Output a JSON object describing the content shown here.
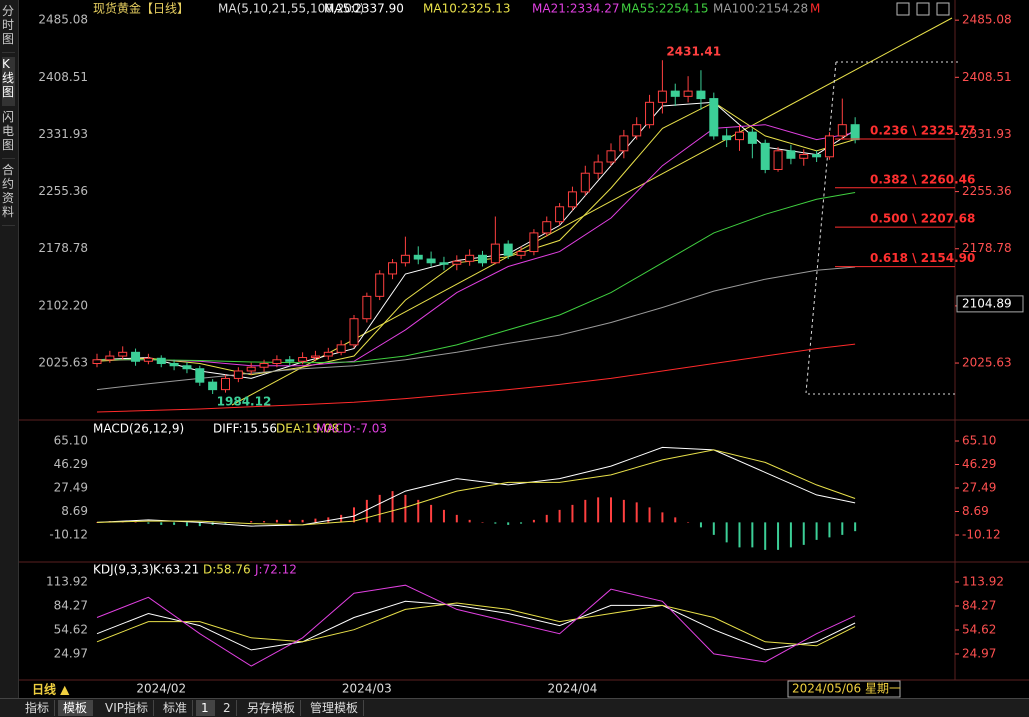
{
  "sidebar": [
    "分时图",
    "K线图",
    "闪电图",
    "合约资料"
  ],
  "timeframe": "日线 ▲",
  "tabs": [
    "指标",
    "模板",
    "VIP指标",
    "标准",
    "1",
    "2",
    "另存模板",
    "管理模板"
  ],
  "chart_data": [
    {
      "type": "candlestick",
      "title": "现货黄金【日线】",
      "subtitle": "MA(5,10,21,55,100,200)",
      "categories": [
        null,
        null,
        null,
        null,
        null,
        "2024/02",
        null,
        null,
        null,
        null,
        null,
        null,
        null,
        null,
        null,
        null,
        null,
        null,
        null,
        null,
        null,
        "2024/03",
        null,
        null,
        null,
        null,
        null,
        null,
        null,
        null,
        null,
        null,
        null,
        null,
        null,
        null,
        null,
        "2024/04",
        null,
        null,
        null,
        null,
        null,
        null,
        null,
        null,
        null,
        null,
        null,
        null,
        null,
        null,
        null,
        null,
        null,
        null,
        null,
        null,
        null,
        null
      ],
      "open": [
        2025,
        2030,
        2035,
        2040,
        2028,
        2032,
        2025,
        2022,
        2018,
        2000,
        1990,
        2005,
        2015,
        2020,
        2025,
        2030,
        2028,
        2033,
        2035,
        2040,
        2050,
        2085,
        2115,
        2145,
        2160,
        2170,
        2165,
        2160,
        2158,
        2162,
        2170,
        2160,
        2185,
        2170,
        2175,
        2200,
        2215,
        2235,
        2255,
        2280,
        2295,
        2310,
        2330,
        2345,
        2375,
        2390,
        2383,
        2390,
        2380,
        2330,
        2325,
        2335,
        2320,
        2285,
        2310,
        2300,
        2305,
        2302,
        2330,
        2345
      ],
      "high": [
        2038,
        2042,
        2048,
        2045,
        2038,
        2036,
        2030,
        2027,
        2022,
        2004,
        2010,
        2020,
        2026,
        2030,
        2036,
        2035,
        2040,
        2042,
        2046,
        2056,
        2090,
        2120,
        2150,
        2165,
        2195,
        2182,
        2175,
        2168,
        2170,
        2178,
        2176,
        2222,
        2190,
        2182,
        2205,
        2222,
        2240,
        2262,
        2290,
        2305,
        2320,
        2338,
        2355,
        2385,
        2431.41,
        2400,
        2410,
        2418,
        2388,
        2340,
        2345,
        2340,
        2325,
        2315,
        2318,
        2312,
        2310,
        2335,
        2380,
        2355
      ],
      "low": [
        2020,
        2026,
        2030,
        2022,
        2024,
        2020,
        2016,
        2012,
        1995,
        1984.12,
        1986,
        2000,
        2010,
        2014,
        2020,
        2022,
        2024,
        2028,
        2030,
        2036,
        2046,
        2080,
        2110,
        2138,
        2155,
        2158,
        2155,
        2150,
        2150,
        2156,
        2155,
        2158,
        2165,
        2165,
        2170,
        2195,
        2210,
        2230,
        2250,
        2272,
        2290,
        2300,
        2325,
        2340,
        2360,
        2370,
        2375,
        2365,
        2325,
        2315,
        2310,
        2300,
        2280,
        2282,
        2292,
        2290,
        2295,
        2298,
        2325,
        2320
      ],
      "close": [
        2030,
        2035,
        2040,
        2028,
        2032,
        2025,
        2022,
        2018,
        2000,
        1990,
        2005,
        2015,
        2020,
        2025,
        2030,
        2028,
        2033,
        2035,
        2040,
        2050,
        2085,
        2115,
        2145,
        2160,
        2170,
        2165,
        2160,
        2158,
        2162,
        2170,
        2160,
        2185,
        2170,
        2175,
        2200,
        2215,
        2235,
        2255,
        2280,
        2295,
        2310,
        2330,
        2345,
        2375,
        2390,
        2383,
        2390,
        2380,
        2330,
        2325,
        2335,
        2320,
        2285,
        2310,
        2300,
        2305,
        2302,
        2330,
        2345,
        2325
      ],
      "up_color": "#ff4040",
      "down_color": "#3ccf97",
      "ylim": [
        1956,
        2492
      ],
      "yticks": [
        2485.08,
        2408.51,
        2331.93,
        2255.36,
        2178.78,
        {
          "value": 2102.2,
          "label": "2102.20"
        },
        2025.63
      ],
      "x": [
        0,
        4,
        8,
        12,
        16,
        20,
        24,
        28,
        32,
        36,
        40,
        44,
        48,
        52,
        56,
        59
      ],
      "series": [
        {
          "name": "MA5:2337.90",
          "color": "#ffffff",
          "values": [
            2030,
            2033,
            2015,
            2005,
            2027,
            2045,
            2145,
            2163,
            2172,
            2210,
            2290,
            2370,
            2375,
            2315,
            2305,
            2337.9
          ]
        },
        {
          "name": "MA10:2325.13",
          "color": "#e8e04a",
          "values": [
            2028,
            2032,
            2025,
            2010,
            2020,
            2035,
            2110,
            2160,
            2168,
            2190,
            2260,
            2340,
            2375,
            2330,
            2310,
            2325.13
          ]
        },
        {
          "name": "MA21:2334.27",
          "color": "#e040e0",
          "values": [
            2030,
            2030,
            2028,
            2022,
            2022,
            2028,
            2070,
            2120,
            2155,
            2175,
            2220,
            2290,
            2340,
            2345,
            2325,
            2334.27
          ]
        },
        {
          "name": "MA55:2254.15",
          "color": "#40d040",
          "values": [
            2030,
            2030,
            2029,
            2027,
            2026,
            2027,
            2035,
            2050,
            2070,
            2090,
            2120,
            2160,
            2200,
            2225,
            2245,
            2254.15
          ]
        },
        {
          "name": "MA100:2154.28",
          "color": "#9a9a9a",
          "values": [
            1990,
            1998,
            2005,
            2012,
            2018,
            2022,
            2030,
            2040,
            2052,
            2063,
            2080,
            2100,
            2122,
            2138,
            2150,
            2154.28
          ]
        },
        {
          "name": "M",
          "color": "#ff2a2a",
          "values": [
            1960,
            1962,
            1964,
            1967,
            1970,
            1973,
            1978,
            1984,
            1990,
            1997,
            2005,
            2015,
            2025,
            2035,
            2045,
            2051
          ]
        }
      ],
      "fibonacci": [
        {
          "value": 2325.77,
          "label": "0.236 \\ 2325.77"
        },
        {
          "value": 2260.46,
          "label": "0.382 \\ 2260.46"
        },
        {
          "value": 2207.68,
          "label": "0.500 \\ 2207.68"
        },
        {
          "value": 2154.9,
          "label": "0.618 \\ 2154.90"
        }
      ],
      "crosshair": {
        "price": 2104.89,
        "date": "2024/05/06 星期一"
      }
    },
    {
      "type": "macd",
      "title": "MACD(26,12,9)",
      "ylim": [
        -30.1,
        77.9
      ],
      "yticks": [
        {
          "value": 65.1,
          "label": "65.10"
        },
        46.29,
        27.49,
        8.69,
        -10.12
      ],
      "x": [
        0,
        4,
        8,
        12,
        16,
        20,
        24,
        28,
        32,
        36,
        40,
        44,
        48,
        52,
        56,
        59
      ],
      "series": [
        {
          "name": "DIFF:15.56",
          "color": "#ffffff",
          "values": [
            0,
            2,
            0,
            -3,
            -2,
            5,
            25,
            35,
            30,
            35,
            45,
            60,
            58,
            40,
            22,
            15.56
          ]
        },
        {
          "name": "DEA:19.08",
          "color": "#e8e04a",
          "values": [
            0,
            1,
            1,
            -1,
            -2,
            1,
            12,
            25,
            32,
            32,
            38,
            50,
            58,
            48,
            30,
            19.08
          ]
        }
      ],
      "histogram": {
        "name": "MACD:-7.03",
        "color": "#e040e0",
        "up_color": "#ff4040",
        "down_color": "#3ccf97",
        "values": [
          0,
          1,
          1,
          0,
          -1,
          -2,
          -2,
          -3,
          -3,
          -2,
          -1,
          0,
          1,
          1,
          2,
          2,
          2,
          3,
          4,
          6,
          12,
          18,
          22,
          25,
          22,
          18,
          14,
          10,
          6,
          2,
          0,
          -1,
          -2,
          -1,
          2,
          6,
          10,
          14,
          18,
          20,
          20,
          18,
          16,
          12,
          8,
          4,
          0,
          -4,
          -10,
          -16,
          -20,
          -20,
          -22,
          -22,
          -20,
          -18,
          -14,
          -12,
          -10,
          -7.03
        ]
      }
    },
    {
      "type": "kdj",
      "title": "KDJ(9,3,3)",
      "ylim": [
        -7.2,
        134.9
      ],
      "yticks": [
        113.92,
        84.27,
        54.62,
        24.97
      ],
      "x": [
        0,
        4,
        8,
        12,
        16,
        20,
        24,
        28,
        32,
        36,
        40,
        44,
        48,
        52,
        56,
        59
      ],
      "series": [
        {
          "name": "K:63.21",
          "color": "#ffffff",
          "values": [
            50,
            75,
            60,
            30,
            40,
            70,
            90,
            85,
            75,
            60,
            85,
            85,
            55,
            30,
            40,
            63.21
          ]
        },
        {
          "name": "D:58.76",
          "color": "#e8e04a",
          "values": [
            40,
            65,
            65,
            45,
            40,
            55,
            80,
            88,
            80,
            65,
            75,
            85,
            70,
            40,
            35,
            58.76
          ]
        },
        {
          "name": "J:72.12",
          "color": "#e040e0",
          "values": [
            70,
            95,
            50,
            10,
            45,
            100,
            110,
            80,
            65,
            50,
            105,
            90,
            25,
            15,
            50,
            72.12
          ]
        }
      ]
    }
  ]
}
